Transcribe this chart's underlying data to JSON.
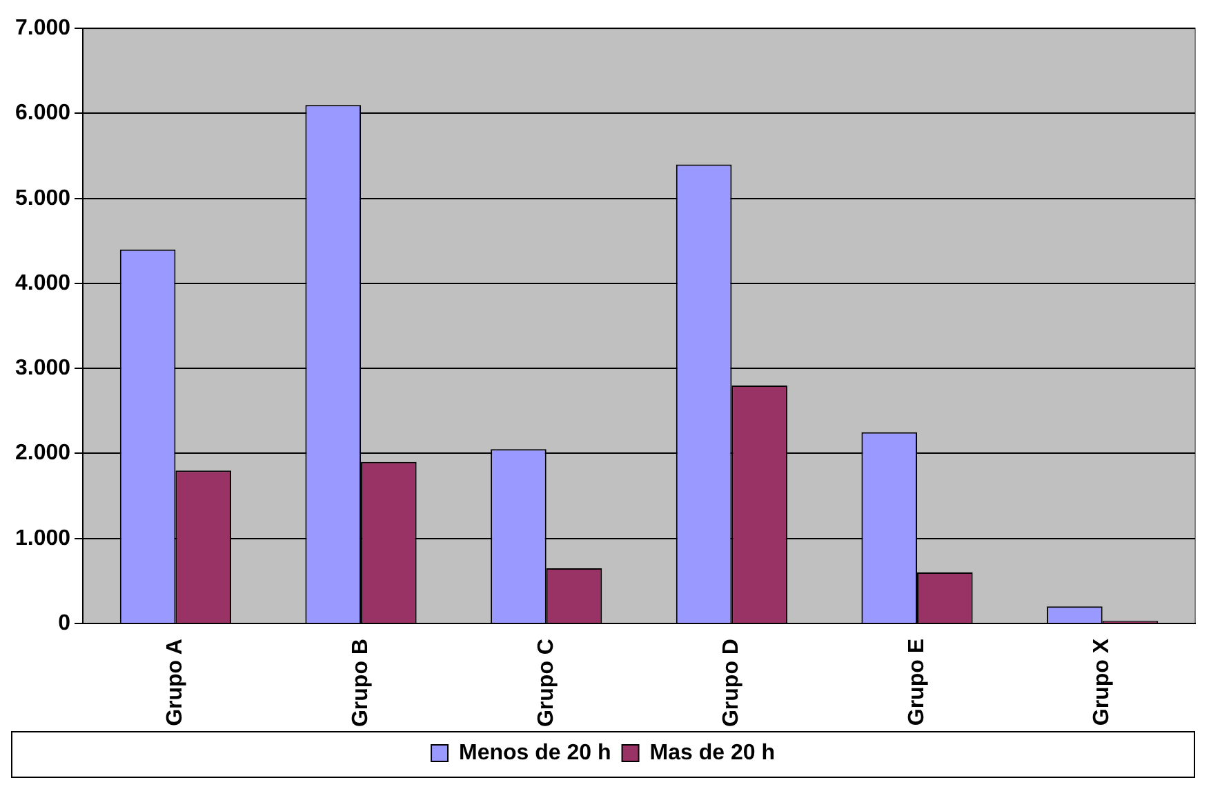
{
  "chart_data": {
    "type": "bar",
    "categories": [
      "Grupo A",
      "Grupo B",
      "Grupo C",
      "Grupo D",
      "Grupo E",
      "Grupo X"
    ],
    "series": [
      {
        "name": "Menos de 20 h",
        "color": "#9999ff",
        "values": [
          4400,
          6100,
          2050,
          5400,
          2250,
          200
        ]
      },
      {
        "name": "Mas de 20 h",
        "color": "#993366",
        "values": [
          1800,
          1900,
          650,
          2800,
          600,
          30
        ]
      }
    ],
    "ylim": [
      0,
      7000
    ],
    "yticks": [
      {
        "value": 0,
        "label": "0"
      },
      {
        "value": 1000,
        "label": "1.000"
      },
      {
        "value": 2000,
        "label": "2.000"
      },
      {
        "value": 3000,
        "label": "3.000"
      },
      {
        "value": 4000,
        "label": "4.000"
      },
      {
        "value": 5000,
        "label": "5.000"
      },
      {
        "value": 6000,
        "label": "6.000"
      },
      {
        "value": 7000,
        "label": "7.000"
      }
    ],
    "grid": "y",
    "legend": "bottom"
  }
}
